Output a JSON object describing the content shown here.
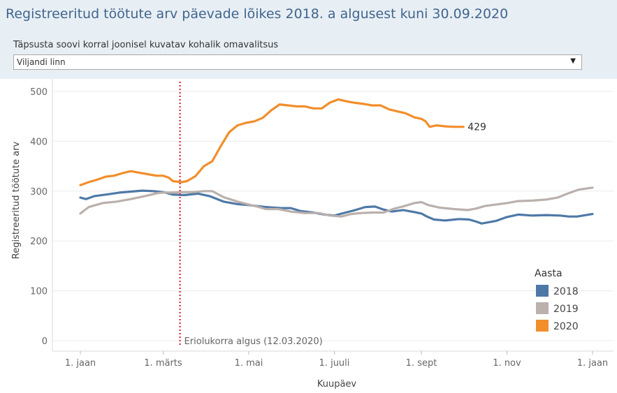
{
  "header": {
    "title": "Registreeritud töötute arv päevade lõikes 2018. a algusest kuni 30.09.2020",
    "filter_label": "Täpsusta soovi korral  joonisel kuvatav kohalik omavalitsus",
    "filter_value": "Viljandi linn"
  },
  "chart_data": {
    "type": "line",
    "xlabel": "Kuupäev",
    "ylabel": "Registreeritud töötute arv",
    "ylim": [
      0,
      520
    ],
    "yticks": [
      0,
      100,
      200,
      300,
      400,
      500
    ],
    "x_tick_days": [
      0,
      59,
      120,
      181,
      243,
      304,
      365
    ],
    "x_tick_labels": [
      "1. jaan",
      "1. märts",
      "1. mai",
      "1. juuli",
      "1. sept",
      "1. nov",
      "1. jaan"
    ],
    "grid": true,
    "legend_title": "Aasta",
    "legend_position": "right",
    "series": [
      {
        "name": "2018",
        "color": "#4e79a7",
        "points": [
          [
            0,
            287
          ],
          [
            4,
            284
          ],
          [
            10,
            290
          ],
          [
            18,
            293
          ],
          [
            28,
            297
          ],
          [
            36,
            299
          ],
          [
            44,
            301
          ],
          [
            52,
            300
          ],
          [
            59,
            298
          ],
          [
            66,
            293
          ],
          [
            74,
            292
          ],
          [
            84,
            295
          ],
          [
            92,
            290
          ],
          [
            102,
            279
          ],
          [
            112,
            274
          ],
          [
            120,
            272
          ],
          [
            132,
            268
          ],
          [
            143,
            266
          ],
          [
            150,
            266
          ],
          [
            157,
            260
          ],
          [
            166,
            257
          ],
          [
            174,
            253
          ],
          [
            181,
            251
          ],
          [
            189,
            257
          ],
          [
            196,
            262
          ],
          [
            203,
            268
          ],
          [
            210,
            269
          ],
          [
            216,
            263
          ],
          [
            222,
            259
          ],
          [
            230,
            262
          ],
          [
            238,
            258
          ],
          [
            243,
            255
          ],
          [
            247,
            249
          ],
          [
            252,
            243
          ],
          [
            260,
            241
          ],
          [
            270,
            244
          ],
          [
            277,
            243
          ],
          [
            282,
            239
          ],
          [
            286,
            235
          ],
          [
            296,
            240
          ],
          [
            304,
            248
          ],
          [
            312,
            253
          ],
          [
            322,
            251
          ],
          [
            332,
            252
          ],
          [
            342,
            251
          ],
          [
            348,
            249
          ],
          [
            354,
            249
          ],
          [
            365,
            254
          ]
        ]
      },
      {
        "name": "2019",
        "color": "#bab0ac",
        "points": [
          [
            0,
            255
          ],
          [
            6,
            268
          ],
          [
            16,
            276
          ],
          [
            26,
            279
          ],
          [
            36,
            284
          ],
          [
            46,
            290
          ],
          [
            55,
            296
          ],
          [
            59,
            297
          ],
          [
            66,
            297
          ],
          [
            72,
            298
          ],
          [
            80,
            298
          ],
          [
            88,
            300
          ],
          [
            94,
            300
          ],
          [
            102,
            288
          ],
          [
            112,
            279
          ],
          [
            120,
            273
          ],
          [
            126,
            269
          ],
          [
            132,
            264
          ],
          [
            141,
            264
          ],
          [
            150,
            259
          ],
          [
            160,
            256
          ],
          [
            170,
            256
          ],
          [
            178,
            251
          ],
          [
            186,
            249
          ],
          [
            193,
            254
          ],
          [
            200,
            256
          ],
          [
            208,
            257
          ],
          [
            216,
            257
          ],
          [
            224,
            265
          ],
          [
            231,
            270
          ],
          [
            238,
            276
          ],
          [
            243,
            278
          ],
          [
            248,
            272
          ],
          [
            256,
            267
          ],
          [
            266,
            264
          ],
          [
            276,
            262
          ],
          [
            282,
            265
          ],
          [
            288,
            270
          ],
          [
            296,
            273
          ],
          [
            304,
            276
          ],
          [
            312,
            280
          ],
          [
            322,
            281
          ],
          [
            332,
            283
          ],
          [
            340,
            287
          ],
          [
            348,
            296
          ],
          [
            355,
            303
          ],
          [
            365,
            307
          ]
        ]
      },
      {
        "name": "2020",
        "color": "#f28e2b",
        "points": [
          [
            0,
            312
          ],
          [
            6,
            318
          ],
          [
            12,
            323
          ],
          [
            18,
            329
          ],
          [
            24,
            331
          ],
          [
            30,
            336
          ],
          [
            36,
            340
          ],
          [
            42,
            337
          ],
          [
            48,
            334
          ],
          [
            54,
            331
          ],
          [
            59,
            331
          ],
          [
            63,
            327
          ],
          [
            66,
            320
          ],
          [
            72,
            318
          ],
          [
            76,
            320
          ],
          [
            82,
            330
          ],
          [
            88,
            350
          ],
          [
            94,
            360
          ],
          [
            100,
            390
          ],
          [
            106,
            418
          ],
          [
            112,
            432
          ],
          [
            118,
            437
          ],
          [
            124,
            440
          ],
          [
            130,
            447
          ],
          [
            136,
            462
          ],
          [
            142,
            474
          ],
          [
            148,
            472
          ],
          [
            154,
            470
          ],
          [
            160,
            470
          ],
          [
            166,
            466
          ],
          [
            172,
            466
          ],
          [
            178,
            478
          ],
          [
            184,
            484
          ],
          [
            190,
            480
          ],
          [
            196,
            477
          ],
          [
            202,
            475
          ],
          [
            208,
            472
          ],
          [
            214,
            472
          ],
          [
            220,
            464
          ],
          [
            226,
            460
          ],
          [
            232,
            456
          ],
          [
            238,
            448
          ],
          [
            243,
            445
          ],
          [
            246,
            440
          ],
          [
            249,
            429
          ],
          [
            254,
            432
          ],
          [
            260,
            430
          ],
          [
            266,
            429
          ],
          [
            273,
            429
          ]
        ]
      }
    ],
    "annotations": [
      {
        "day": 71,
        "label": "Eriolukorra algus (12.03.2020)"
      }
    ],
    "end_label": {
      "series": "2020",
      "day": 273,
      "value": 429,
      "text": "429"
    }
  }
}
